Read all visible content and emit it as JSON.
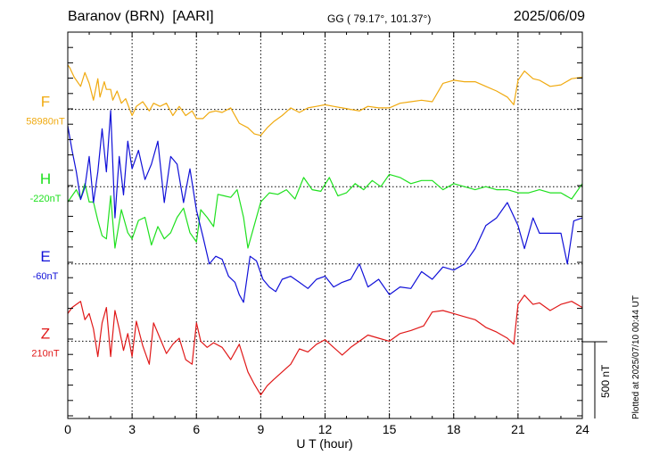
{
  "header": {
    "station": "Baranov (BRN)  [AARI]",
    "coords": "GG ( 79.17°, 101.37°)",
    "date": "2025/06/09"
  },
  "footer": {
    "plotted_at": "Plotted at 2025/07/10 00:44 UT"
  },
  "chart_data": {
    "type": "line",
    "xlabel": "U T (hour)",
    "x_ticks": [
      0,
      3,
      6,
      9,
      12,
      15,
      18,
      21,
      24
    ],
    "xlim": [
      0,
      24
    ],
    "grid": true,
    "scale_bar_label": "500 nT",
    "scale_bar_nT": 500,
    "colors": {
      "F": "#f0aa10",
      "H": "#1ee01e",
      "E": "#1010d8",
      "Z": "#e01818"
    },
    "series": [
      {
        "name": "F",
        "baseline_label": "58980nT",
        "baseline_nT": 58980,
        "baseline_row": 1,
        "x": [
          0,
          0.1,
          0.3,
          0.6,
          0.8,
          1.0,
          1.2,
          1.4,
          1.5,
          1.7,
          1.8,
          2.0,
          2.1,
          2.3,
          2.5,
          2.7,
          3.0,
          3.2,
          3.5,
          3.8,
          4.0,
          4.3,
          4.6,
          4.9,
          5.2,
          5.5,
          5.8,
          6.0,
          6.3,
          6.6,
          6.9,
          7.2,
          7.6,
          8.0,
          8.4,
          8.7,
          9.0,
          9.3,
          9.6,
          10.0,
          10.4,
          10.8,
          11.2,
          11.6,
          12.0,
          12.4,
          12.8,
          13.2,
          13.6,
          14.0,
          14.5,
          15.0,
          15.5,
          16.0,
          16.5,
          17.0,
          17.5,
          18.0,
          18.5,
          19.0,
          19.5,
          20.0,
          20.5,
          20.8,
          21.0,
          21.3,
          21.7,
          22.0,
          22.5,
          23.0,
          23.5,
          24.0
        ],
        "y": [
          290,
          270,
          210,
          150,
          240,
          170,
          60,
          200,
          80,
          180,
          130,
          130,
          60,
          120,
          40,
          70,
          -40,
          20,
          50,
          -10,
          40,
          20,
          40,
          -40,
          20,
          -40,
          -10,
          -60,
          -60,
          -20,
          -10,
          -20,
          10,
          -90,
          -120,
          -160,
          -170,
          -120,
          -80,
          -40,
          10,
          -20,
          10,
          20,
          30,
          20,
          10,
          0,
          -10,
          20,
          10,
          10,
          40,
          50,
          60,
          50,
          170,
          190,
          180,
          180,
          150,
          120,
          80,
          30,
          190,
          250,
          200,
          190,
          150,
          160,
          200,
          210
        ]
      },
      {
        "name": "H",
        "baseline_label": "-220nT",
        "baseline_nT": -220,
        "baseline_row": 2,
        "x": [
          0,
          0.2,
          0.4,
          0.6,
          0.8,
          1.0,
          1.2,
          1.4,
          1.6,
          1.8,
          2.0,
          2.2,
          2.5,
          2.8,
          3.0,
          3.3,
          3.6,
          3.9,
          4.2,
          4.5,
          4.8,
          5.1,
          5.4,
          5.7,
          6.0,
          6.2,
          6.5,
          6.8,
          7.0,
          7.3,
          7.6,
          7.9,
          8.2,
          8.4,
          8.6,
          9.0,
          9.4,
          9.8,
          10.2,
          10.6,
          11.0,
          11.4,
          11.8,
          12.2,
          12.6,
          13.0,
          13.4,
          13.8,
          14.2,
          14.6,
          15.0,
          15.5,
          16.0,
          16.5,
          17.0,
          17.5,
          18.0,
          18.5,
          19.0,
          19.5,
          20.0,
          20.5,
          21.0,
          21.5,
          22.0,
          22.5,
          23.0,
          23.5,
          24.0
        ],
        "y": [
          -100,
          -60,
          -20,
          -80,
          20,
          -100,
          -100,
          -220,
          -320,
          -340,
          -60,
          -400,
          -150,
          -300,
          -340,
          -220,
          -200,
          -380,
          -260,
          -340,
          -300,
          -200,
          -140,
          -300,
          -360,
          -150,
          -200,
          -260,
          -50,
          -60,
          -70,
          -20,
          -200,
          -400,
          -300,
          -100,
          -40,
          -50,
          -20,
          -80,
          60,
          -20,
          -30,
          60,
          -60,
          -40,
          20,
          -20,
          40,
          0,
          80,
          60,
          20,
          40,
          40,
          -20,
          20,
          0,
          -20,
          0,
          -20,
          -20,
          -40,
          -40,
          -20,
          -40,
          -40,
          -80,
          20
        ]
      },
      {
        "name": "E",
        "baseline_label": "-60nT",
        "baseline_nT": -60,
        "baseline_row": 3,
        "x": [
          0,
          0.2,
          0.4,
          0.6,
          0.8,
          1.0,
          1.2,
          1.4,
          1.6,
          1.8,
          2.0,
          2.2,
          2.4,
          2.6,
          2.8,
          3.0,
          3.3,
          3.6,
          3.9,
          4.2,
          4.5,
          4.8,
          5.1,
          5.4,
          5.7,
          6.0,
          6.3,
          6.6,
          6.9,
          7.2,
          7.5,
          7.8,
          8.0,
          8.2,
          8.5,
          8.8,
          9.1,
          9.4,
          9.7,
          10.0,
          10.4,
          10.8,
          11.2,
          11.6,
          12.0,
          12.4,
          12.8,
          13.2,
          13.6,
          14.0,
          14.5,
          15.0,
          15.5,
          16.0,
          16.5,
          17.0,
          17.5,
          18.0,
          18.5,
          19.0,
          19.5,
          20.0,
          20.5,
          21.0,
          21.3,
          21.7,
          22.0,
          22.5,
          23.0,
          23.3,
          23.6,
          24.0
        ],
        "y": [
          900,
          740,
          600,
          420,
          500,
          700,
          400,
          600,
          880,
          600,
          1000,
          300,
          700,
          450,
          800,
          620,
          740,
          550,
          650,
          800,
          400,
          700,
          650,
          400,
          620,
          350,
          180,
          0,
          50,
          30,
          -80,
          -120,
          -200,
          -250,
          50,
          20,
          -100,
          -150,
          -180,
          -100,
          -80,
          -120,
          -160,
          -100,
          -80,
          -150,
          -120,
          -100,
          0,
          -150,
          -100,
          -200,
          -150,
          -160,
          -50,
          -100,
          -20,
          -40,
          0,
          100,
          250,
          300,
          400,
          250,
          100,
          300,
          200,
          200,
          200,
          0,
          280,
          300
        ]
      },
      {
        "name": "Z",
        "baseline_label": "210nT",
        "baseline_nT": 210,
        "baseline_row": 4,
        "x": [
          0,
          0.2,
          0.4,
          0.6,
          0.8,
          1.0,
          1.2,
          1.4,
          1.6,
          1.8,
          2.0,
          2.2,
          2.4,
          2.6,
          2.8,
          3.0,
          3.2,
          3.5,
          3.8,
          4.0,
          4.3,
          4.6,
          4.9,
          5.2,
          5.5,
          5.8,
          6.0,
          6.2,
          6.5,
          6.8,
          7.2,
          7.6,
          8.0,
          8.4,
          8.7,
          9.0,
          9.3,
          9.6,
          10.0,
          10.4,
          10.8,
          11.2,
          11.6,
          12.0,
          12.4,
          12.8,
          13.2,
          13.6,
          14.0,
          14.5,
          15.0,
          15.5,
          16.0,
          16.6,
          17.0,
          17.5,
          18.0,
          18.5,
          19.0,
          19.5,
          20.0,
          20.5,
          20.8,
          21.0,
          21.3,
          21.7,
          22.0,
          22.5,
          23.0,
          23.5,
          24.0
        ],
        "y": [
          180,
          220,
          240,
          260,
          140,
          180,
          80,
          -100,
          120,
          220,
          -100,
          200,
          80,
          -60,
          50,
          -100,
          130,
          -30,
          -150,
          120,
          20,
          -80,
          -20,
          20,
          -120,
          -150,
          120,
          0,
          -40,
          -10,
          -40,
          -120,
          -20,
          -200,
          -280,
          -350,
          -290,
          -250,
          -200,
          -150,
          -50,
          -70,
          -20,
          10,
          -40,
          -90,
          -40,
          0,
          40,
          20,
          0,
          50,
          70,
          100,
          190,
          200,
          180,
          160,
          140,
          90,
          60,
          20,
          -20,
          240,
          300,
          240,
          250,
          200,
          240,
          260,
          220
        ]
      }
    ]
  }
}
